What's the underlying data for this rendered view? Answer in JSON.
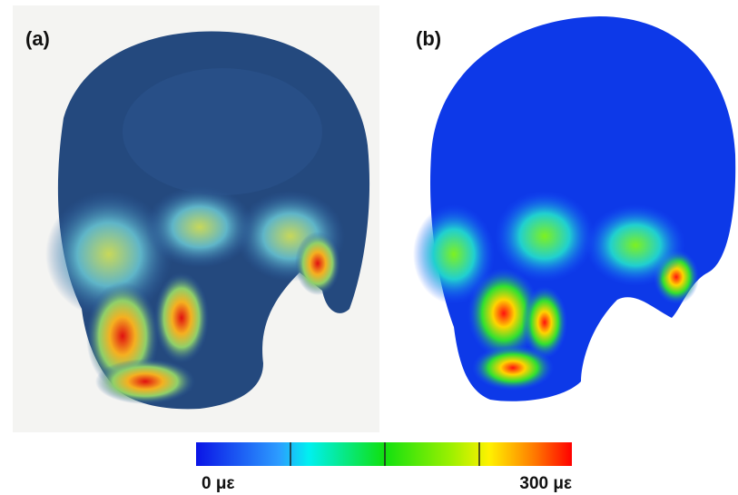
{
  "panels": [
    {
      "label": "(a)"
    },
    {
      "label": "(b)"
    }
  ],
  "colorbar": {
    "min_label": "0 με",
    "max_label": "300 με"
  }
}
